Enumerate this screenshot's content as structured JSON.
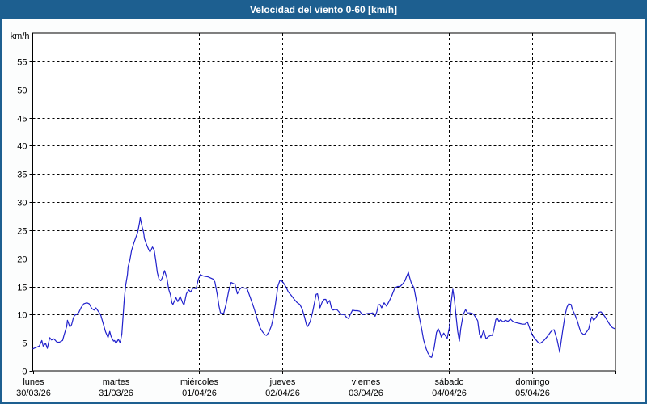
{
  "title_bar": {
    "text": "Velocidad del viento 0-60 [km/h]"
  },
  "colors": {
    "accent_blue": "#1d5f90",
    "title_text": "#ffffff",
    "outer_background": "#fcfdfd",
    "plot_background": "#ffffff",
    "grid": "#000000",
    "axis_text": "#000000",
    "series_line": "#2020cc"
  },
  "chart_data": {
    "type": "line",
    "title": "Velocidad del viento 0-60 [km/h]",
    "ylabel": "km/h",
    "y_unit_label": "km/h",
    "ylim": [
      0,
      60
    ],
    "ytick_step": 5,
    "ytick_labels": [
      "0",
      "5",
      "10",
      "15",
      "20",
      "25",
      "30",
      "35",
      "40",
      "45",
      "50",
      "55"
    ],
    "grid": "dashed",
    "legend": "none",
    "xlim_hours": [
      0,
      168
    ],
    "hours_per_day": 24,
    "x_days": [
      {
        "name": "lunes",
        "date": "30/03/26"
      },
      {
        "name": "martes",
        "date": "31/03/26"
      },
      {
        "name": "miércoles",
        "date": "01/04/26"
      },
      {
        "name": "jueves",
        "date": "02/04/26"
      },
      {
        "name": "viernes",
        "date": "03/04/26"
      },
      {
        "name": "sábado",
        "date": "04/04/26"
      },
      {
        "name": "domingo",
        "date": "05/04/26"
      }
    ],
    "series": [
      {
        "name": "velocidad_viento_kmh",
        "color": "#2020cc",
        "points": [
          [
            0,
            3.9
          ],
          [
            0.7,
            4.1
          ],
          [
            1.9,
            4.4
          ],
          [
            2.6,
            5.4
          ],
          [
            3,
            4.4
          ],
          [
            3.7,
            4.9
          ],
          [
            4.2,
            4
          ],
          [
            4.9,
            5.9
          ],
          [
            5.4,
            5.5
          ],
          [
            6.1,
            5.7
          ],
          [
            7,
            5.1
          ],
          [
            7.7,
            5.1
          ],
          [
            8.6,
            5.4
          ],
          [
            9.1,
            6.5
          ],
          [
            9.8,
            7.9
          ],
          [
            10,
            9
          ],
          [
            10.7,
            7.8
          ],
          [
            11.2,
            8.2
          ],
          [
            11.7,
            9.4
          ],
          [
            12.1,
            9.9
          ],
          [
            12.6,
            10
          ],
          [
            13.3,
            10.4
          ],
          [
            14,
            11.3
          ],
          [
            14.7,
            11.9
          ],
          [
            15.6,
            12.1
          ],
          [
            16.3,
            11.9
          ],
          [
            17,
            11.1
          ],
          [
            17.7,
            10.8
          ],
          [
            18.2,
            11.2
          ],
          [
            19.1,
            10.4
          ],
          [
            19.6,
            9.9
          ],
          [
            20.3,
            8.4
          ],
          [
            21,
            6.9
          ],
          [
            21.7,
            5.9
          ],
          [
            22.2,
            7
          ],
          [
            22.6,
            6.1
          ],
          [
            23.3,
            5.3
          ],
          [
            23.6,
            5.4
          ],
          [
            24,
            4.9
          ],
          [
            24.7,
            5.6
          ],
          [
            25.2,
            5
          ],
          [
            25.7,
            6.6
          ],
          [
            25.9,
            8.5
          ],
          [
            26.4,
            12.8
          ],
          [
            26.8,
            15.2
          ],
          [
            27.3,
            17.1
          ],
          [
            27.5,
            18.5
          ],
          [
            28,
            19.7
          ],
          [
            28.5,
            21.4
          ],
          [
            29.2,
            22.8
          ],
          [
            29.9,
            24
          ],
          [
            30.3,
            24.7
          ],
          [
            30.8,
            26.4
          ],
          [
            31,
            27.2
          ],
          [
            31.5,
            25.7
          ],
          [
            32,
            24.5
          ],
          [
            32.2,
            23.5
          ],
          [
            32.9,
            22.3
          ],
          [
            33.4,
            21.6
          ],
          [
            33.8,
            21.1
          ],
          [
            34.5,
            22
          ],
          [
            35,
            21.5
          ],
          [
            35.5,
            19.5
          ],
          [
            35.9,
            17.5
          ],
          [
            36.4,
            16.3
          ],
          [
            36.9,
            16
          ],
          [
            37.3,
            16.5
          ],
          [
            38,
            17.8
          ],
          [
            38.7,
            16.4
          ],
          [
            39.2,
            14.5
          ],
          [
            39.7,
            13.5
          ],
          [
            40.1,
            12.1
          ],
          [
            40.4,
            11.8
          ],
          [
            41.3,
            13
          ],
          [
            41.8,
            12.3
          ],
          [
            42.5,
            13.2
          ],
          [
            43.2,
            12.1
          ],
          [
            43.6,
            11.7
          ],
          [
            44.3,
            13.7
          ],
          [
            45,
            14.4
          ],
          [
            45.5,
            14
          ],
          [
            46.2,
            14.7
          ],
          [
            47.1,
            14.6
          ],
          [
            47.8,
            16.4
          ],
          [
            48.3,
            17.1
          ],
          [
            49,
            16.9
          ],
          [
            49.7,
            16.8
          ],
          [
            50.6,
            16.7
          ],
          [
            51.3,
            16.5
          ],
          [
            52,
            16.3
          ],
          [
            52.5,
            15.8
          ],
          [
            53.2,
            13.5
          ],
          [
            53.7,
            11.5
          ],
          [
            54.1,
            10.4
          ],
          [
            54.4,
            10.1
          ],
          [
            55.1,
            10.3
          ],
          [
            55.8,
            12
          ],
          [
            56.5,
            14.2
          ],
          [
            57.2,
            15.7
          ],
          [
            57.9,
            15.5
          ],
          [
            58.3,
            15.4
          ],
          [
            59,
            13.7
          ],
          [
            59.7,
            14.5
          ],
          [
            60.2,
            14.8
          ],
          [
            61.1,
            14.7
          ],
          [
            61.8,
            14.6
          ],
          [
            62.5,
            13.4
          ],
          [
            63.2,
            12.2
          ],
          [
            63.7,
            11.3
          ],
          [
            64.4,
            9.9
          ],
          [
            64.9,
            8.9
          ],
          [
            65.6,
            7.6
          ],
          [
            66.3,
            6.9
          ],
          [
            67,
            6.4
          ],
          [
            67.4,
            6.3
          ],
          [
            68.1,
            6.9
          ],
          [
            68.8,
            8
          ],
          [
            69.3,
            9.3
          ],
          [
            70,
            12
          ],
          [
            70.7,
            15.1
          ],
          [
            71.2,
            16
          ],
          [
            71.6,
            16.1
          ],
          [
            72.3,
            15.6
          ],
          [
            73,
            14.9
          ],
          [
            73.7,
            14
          ],
          [
            74.4,
            13.5
          ],
          [
            75.4,
            12.7
          ],
          [
            76.1,
            12.2
          ],
          [
            76.5,
            12
          ],
          [
            77,
            11.8
          ],
          [
            77.7,
            11
          ],
          [
            78.4,
            9.5
          ],
          [
            78.9,
            8.2
          ],
          [
            79.3,
            7.9
          ],
          [
            80,
            8.8
          ],
          [
            80.7,
            10.5
          ],
          [
            81.2,
            12
          ],
          [
            81.7,
            13.6
          ],
          [
            82.1,
            13.7
          ],
          [
            82.6,
            12.2
          ],
          [
            82.8,
            11.2
          ],
          [
            83.5,
            12.3
          ],
          [
            84,
            12.7
          ],
          [
            84.5,
            12.7
          ],
          [
            84.9,
            12
          ],
          [
            85.6,
            12.5
          ],
          [
            86.1,
            11.2
          ],
          [
            86.6,
            10.8
          ],
          [
            87,
            10.9
          ],
          [
            87.7,
            10.9
          ],
          [
            88.4,
            10.4
          ],
          [
            89.1,
            10
          ],
          [
            89.8,
            10
          ],
          [
            90.5,
            9.5
          ],
          [
            91,
            9.3
          ],
          [
            91.7,
            10.2
          ],
          [
            92.2,
            10.8
          ],
          [
            92.9,
            10.7
          ],
          [
            93.6,
            10.7
          ],
          [
            94.3,
            10.6
          ],
          [
            95,
            10
          ],
          [
            95.4,
            10
          ],
          [
            95.9,
            10.1
          ],
          [
            96.6,
            10.2
          ],
          [
            97.3,
            10.2
          ],
          [
            98,
            10.3
          ],
          [
            98.7,
            9.7
          ],
          [
            99.2,
            10.5
          ],
          [
            99.6,
            11.7
          ],
          [
            100.1,
            11.8
          ],
          [
            100.6,
            11.2
          ],
          [
            101.3,
            12.1
          ],
          [
            102,
            11.5
          ],
          [
            102.7,
            12.3
          ],
          [
            103.4,
            13.2
          ],
          [
            104.1,
            14.3
          ],
          [
            104.5,
            14.8
          ],
          [
            105.2,
            15
          ],
          [
            105.9,
            15
          ],
          [
            106.6,
            15.4
          ],
          [
            107.3,
            16
          ],
          [
            107.8,
            16.8
          ],
          [
            108.3,
            17.5
          ],
          [
            108.7,
            16.5
          ],
          [
            109.2,
            15.5
          ],
          [
            109.9,
            14.8
          ],
          [
            110.6,
            12.5
          ],
          [
            111.3,
            10
          ],
          [
            112,
            7.9
          ],
          [
            112.7,
            5.5
          ],
          [
            113.4,
            4
          ],
          [
            113.9,
            3.2
          ],
          [
            114.6,
            2.5
          ],
          [
            115,
            2.4
          ],
          [
            115.7,
            4
          ],
          [
            116.4,
            6.8
          ],
          [
            116.9,
            7.5
          ],
          [
            117.4,
            6.8
          ],
          [
            117.8,
            6
          ],
          [
            118.5,
            6.7
          ],
          [
            119,
            6.2
          ],
          [
            119.5,
            5.8
          ],
          [
            120.2,
            8
          ],
          [
            120.6,
            12
          ],
          [
            121.1,
            14.5
          ],
          [
            121.6,
            12.5
          ],
          [
            122,
            10
          ],
          [
            122.5,
            7
          ],
          [
            123,
            5.3
          ],
          [
            123.4,
            7.5
          ],
          [
            124.1,
            10
          ],
          [
            124.8,
            10.9
          ],
          [
            125.3,
            10.3
          ],
          [
            126,
            10.3
          ],
          [
            126.7,
            10.2
          ],
          [
            127.2,
            10
          ],
          [
            127.9,
            9.3
          ],
          [
            128.3,
            8.9
          ],
          [
            128.8,
            6.5
          ],
          [
            129.3,
            5.9
          ],
          [
            130,
            7.2
          ],
          [
            130.7,
            5.7
          ],
          [
            131.4,
            6.1
          ],
          [
            132.1,
            6.3
          ],
          [
            132.5,
            6.3
          ],
          [
            133,
            7.5
          ],
          [
            133.5,
            9.1
          ],
          [
            133.9,
            9.4
          ],
          [
            134.4,
            8.8
          ],
          [
            134.9,
            9.1
          ],
          [
            135.6,
            8.7
          ],
          [
            136.3,
            9
          ],
          [
            137,
            8.8
          ],
          [
            137.7,
            9.2
          ],
          [
            138.4,
            8.8
          ],
          [
            139.1,
            8.6
          ],
          [
            139.8,
            8.5
          ],
          [
            140.5,
            8.4
          ],
          [
            141.2,
            8.3
          ],
          [
            141.9,
            8.3
          ],
          [
            142.6,
            8.7
          ],
          [
            143.3,
            7.5
          ],
          [
            144,
            6.4
          ],
          [
            144.7,
            5.8
          ],
          [
            145.1,
            5.5
          ],
          [
            145.8,
            5
          ],
          [
            146.3,
            4.9
          ],
          [
            147,
            5.2
          ],
          [
            147.5,
            5.5
          ],
          [
            148.2,
            6
          ],
          [
            148.6,
            6.3
          ],
          [
            149.3,
            6.9
          ],
          [
            149.8,
            7.2
          ],
          [
            150.3,
            7.3
          ],
          [
            150.7,
            6.5
          ],
          [
            151.2,
            5.5
          ],
          [
            151.7,
            4
          ],
          [
            151.9,
            3.3
          ],
          [
            152.4,
            5.5
          ],
          [
            152.8,
            7.2
          ],
          [
            153.5,
            10
          ],
          [
            154,
            11.3
          ],
          [
            154.5,
            11.9
          ],
          [
            155.2,
            11.8
          ],
          [
            155.6,
            10.9
          ],
          [
            156.3,
            10
          ],
          [
            157,
            8.9
          ],
          [
            157.5,
            7.8
          ],
          [
            158,
            6.9
          ],
          [
            158.7,
            6.5
          ],
          [
            159.1,
            6.5
          ],
          [
            159.8,
            7
          ],
          [
            160.3,
            7.5
          ],
          [
            161,
            9.3
          ],
          [
            161.2,
            9.6
          ],
          [
            161.7,
            9
          ],
          [
            162.2,
            9.3
          ],
          [
            162.6,
            9.7
          ],
          [
            163.3,
            10.4
          ],
          [
            163.8,
            10.5
          ],
          [
            164.3,
            10.2
          ],
          [
            165,
            9.6
          ],
          [
            165.7,
            8.9
          ],
          [
            166.4,
            8.2
          ],
          [
            167.1,
            7.7
          ],
          [
            167.8,
            7.5
          ]
        ]
      }
    ]
  }
}
